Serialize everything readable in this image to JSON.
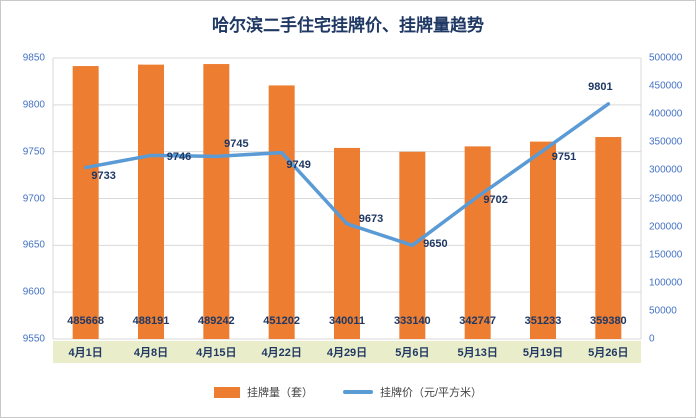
{
  "title": "哈尔滨二手住宅挂牌价、挂牌量趋势",
  "chart_data": {
    "type": "bar",
    "subtype": "combo-bar-line",
    "categories": [
      "4月1日",
      "4月8日",
      "4月15日",
      "4月22日",
      "4月29日",
      "5月6日",
      "5月13日",
      "5月19日",
      "5月26日"
    ],
    "series": [
      {
        "name": "挂牌量（套）",
        "type": "bar",
        "axis": "right",
        "values": [
          485668,
          488191,
          489242,
          451202,
          340011,
          333140,
          342747,
          351233,
          359380
        ]
      },
      {
        "name": "挂牌价（元/平方米）",
        "type": "line",
        "axis": "left",
        "values": [
          9733,
          9746,
          9745,
          9749,
          9673,
          9650,
          9702,
          9751,
          9801
        ]
      }
    ],
    "title": "哈尔滨二手住宅挂牌价、挂牌量趋势",
    "left_axis": {
      "min": 9550,
      "max": 9850,
      "step": 50,
      "ticks": [
        9850,
        9800,
        9750,
        9700,
        9650,
        9600,
        9550
      ]
    },
    "right_axis": {
      "min": 0,
      "max": 500000,
      "step": 50000,
      "ticks": [
        500000,
        450000,
        400000,
        350000,
        300000,
        250000,
        200000,
        150000,
        100000,
        50000,
        0
      ]
    },
    "grid": true,
    "legend_position": "bottom",
    "colors": {
      "bar": "#ED7D31",
      "line": "#5B9BD5",
      "title": "#1F3864",
      "data_label": "#1F3864",
      "tick_label": "#4472C4",
      "category_band": "#EAEDC9",
      "gridline": "#D9D9D9"
    }
  }
}
